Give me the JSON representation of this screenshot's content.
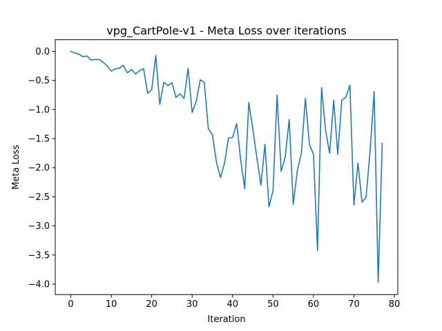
{
  "chart_data": {
    "type": "line",
    "title": "vpg_CartPole-v1 - Meta Loss over iterations",
    "xlabel": "Iteration",
    "ylabel": "Meta Loss",
    "xlim": [
      -3.85,
      80.85
    ],
    "ylim": [
      -4.18,
      0.2
    ],
    "x_ticks": [
      0,
      10,
      20,
      30,
      40,
      50,
      60,
      70,
      80
    ],
    "y_ticks": [
      0.0,
      -0.5,
      -1.0,
      -1.5,
      -2.0,
      -2.5,
      -3.0,
      -3.5,
      -4.0
    ],
    "x_tick_labels": [
      "0",
      "10",
      "20",
      "30",
      "40",
      "50",
      "60",
      "70",
      "80"
    ],
    "y_tick_labels": [
      "0.0",
      "−0.5",
      "−1.0",
      "−1.5",
      "−2.0",
      "−2.5",
      "−3.0",
      "−3.5",
      "−4.0"
    ],
    "grid": false,
    "legend": "none",
    "series": [
      {
        "color": "#1f77b4",
        "x": [
          0,
          1,
          2,
          3,
          4,
          5,
          6,
          7,
          8,
          9,
          10,
          11,
          12,
          13,
          14,
          15,
          16,
          17,
          18,
          19,
          20,
          21,
          22,
          23,
          24,
          25,
          26,
          27,
          28,
          29,
          30,
          31,
          32,
          33,
          34,
          35,
          36,
          37,
          38,
          39,
          40,
          41,
          42,
          43,
          44,
          45,
          46,
          47,
          48,
          49,
          50,
          51,
          52,
          53,
          54,
          55,
          56,
          57,
          58,
          59,
          60,
          61,
          62,
          63,
          64,
          65,
          66,
          67,
          68,
          69,
          70,
          71,
          72,
          73,
          74,
          75,
          76,
          77
        ],
        "values": [
          0.0,
          -0.03,
          -0.05,
          -0.09,
          -0.08,
          -0.15,
          -0.14,
          -0.14,
          -0.19,
          -0.25,
          -0.34,
          -0.3,
          -0.29,
          -0.24,
          -0.37,
          -0.31,
          -0.39,
          -0.33,
          -0.3,
          -0.72,
          -0.66,
          -0.07,
          -0.91,
          -0.53,
          -0.59,
          -0.54,
          -0.79,
          -0.73,
          -0.81,
          -0.29,
          -1.05,
          -0.86,
          -0.49,
          -0.53,
          -1.33,
          -1.43,
          -1.9,
          -2.17,
          -1.92,
          -1.49,
          -1.48,
          -1.24,
          -1.86,
          -2.36,
          -0.88,
          -1.33,
          -1.83,
          -2.3,
          -1.6,
          -2.67,
          -2.39,
          -0.75,
          -2.06,
          -1.82,
          -1.17,
          -2.63,
          -2.05,
          -1.75,
          -0.81,
          -1.6,
          -1.77,
          -3.42,
          -0.62,
          -1.36,
          -1.75,
          -0.84,
          -1.77,
          -0.84,
          -0.79,
          -0.58,
          -2.64,
          -1.92,
          -2.59,
          -2.51,
          -1.71,
          -0.69,
          -3.97,
          -1.58
        ]
      }
    ]
  }
}
